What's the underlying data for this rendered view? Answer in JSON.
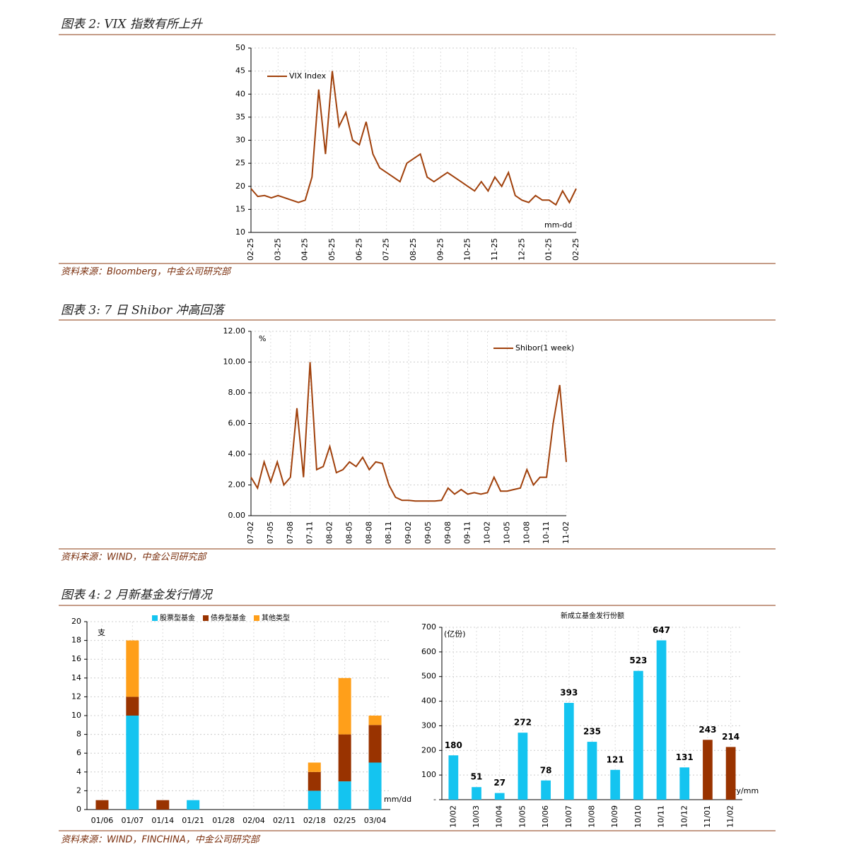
{
  "figure_titles": [
    "图表 2:  VIX 指数有所上升",
    "图表 3:  7 日 Shibor 冲高回落",
    "图表 4:  2 月新基金发行情况"
  ],
  "sources": [
    "资料来源：Bloomberg，中金公司研究部",
    "资料来源：WIND，中金公司研究部",
    "资料来源：WIND，FINCHINA，中金公司研究部"
  ],
  "chart_data": [
    {
      "type": "line",
      "annotations": [
        "mm-dd"
      ],
      "categories": [
        "02-25",
        null,
        null,
        null,
        "03-25",
        null,
        null,
        null,
        "04-25",
        null,
        null,
        null,
        "05-25",
        null,
        null,
        null,
        "06-25",
        null,
        null,
        null,
        "07-25",
        null,
        null,
        null,
        "08-25",
        null,
        null,
        null,
        "09-25",
        null,
        null,
        null,
        "10-25",
        null,
        null,
        null,
        "11-25",
        null,
        null,
        null,
        "12-25",
        null,
        null,
        null,
        "01-25",
        null,
        null,
        null,
        "02-25"
      ],
      "series": [
        {
          "name": "VIX Index",
          "color": "#a0400b",
          "values": [
            19.5,
            17.8,
            18,
            17.5,
            18,
            17.5,
            17,
            16.5,
            17,
            22,
            41,
            27,
            45,
            33,
            36,
            30,
            29,
            34,
            27,
            24,
            23,
            22,
            21,
            25,
            26,
            27,
            22,
            21,
            22,
            23,
            22,
            21,
            20,
            19,
            21,
            19,
            22,
            20,
            23,
            18,
            17,
            16.5,
            18,
            17,
            17,
            16,
            19,
            16.5,
            19.5
          ]
        }
      ],
      "ylim": [
        10,
        50
      ],
      "yticks": [
        10,
        15,
        20,
        25,
        30,
        35,
        40,
        45,
        50
      ],
      "grid": true
    },
    {
      "type": "line",
      "annotations": [
        "%"
      ],
      "categories": [
        "07-02",
        null,
        null,
        "07-05",
        null,
        null,
        "07-08",
        null,
        null,
        "07-11",
        null,
        null,
        "08-02",
        null,
        null,
        "08-05",
        null,
        null,
        "08-08",
        null,
        null,
        "08-11",
        null,
        null,
        "09-02",
        null,
        null,
        "09-05",
        null,
        null,
        "09-08",
        null,
        null,
        "09-11",
        null,
        null,
        "10-02",
        null,
        null,
        "10-05",
        null,
        null,
        "10-08",
        null,
        null,
        "10-11",
        null,
        null,
        "11-02"
      ],
      "series": [
        {
          "name": "Shibor(1 week)",
          "color": "#a0400b",
          "values": [
            2.5,
            1.8,
            3.5,
            2.2,
            3.5,
            2.0,
            2.5,
            7.0,
            2.5,
            10.0,
            3.0,
            3.2,
            4.5,
            2.8,
            3.0,
            3.5,
            3.2,
            3.8,
            3.0,
            3.5,
            3.4,
            2.0,
            1.2,
            1.0,
            1.0,
            0.95,
            0.95,
            0.95,
            0.95,
            1.0,
            1.8,
            1.4,
            1.7,
            1.4,
            1.5,
            1.4,
            1.5,
            2.5,
            1.6,
            1.6,
            1.7,
            1.8,
            3.0,
            2.0,
            2.5,
            2.5,
            6.0,
            8.5,
            3.5
          ]
        }
      ],
      "ylim": [
        0,
        12
      ],
      "yticks": [
        {
          "value": 0,
          "label": "0.00"
        },
        {
          "value": 2,
          "label": "2.00"
        },
        {
          "value": 4,
          "label": "4.00"
        },
        {
          "value": 6,
          "label": "6.00"
        },
        {
          "value": 8,
          "label": "8.00"
        },
        {
          "value": 10,
          "label": "10.00"
        },
        {
          "value": 12,
          "label": "12.00"
        }
      ],
      "grid": true
    },
    {
      "type": "bar",
      "stacked": true,
      "annotations": [
        "支",
        "mm/dd"
      ],
      "categories": [
        "01/06",
        "01/07",
        "01/14",
        "01/21",
        "01/28",
        "02/04",
        "02/11",
        "02/18",
        "02/25",
        "03/04"
      ],
      "series": [
        {
          "name": "股票型基金",
          "color": "#14c4f0",
          "values": [
            0,
            10,
            0,
            1,
            0,
            0,
            0,
            2,
            3,
            5
          ]
        },
        {
          "name": "债券型基金",
          "color": "#993300",
          "values": [
            1,
            2,
            1,
            0,
            0,
            0,
            0,
            2,
            5,
            4
          ]
        },
        {
          "name": "其他类型",
          "color": "#ff9f1a",
          "values": [
            0,
            6,
            0,
            0,
            0,
            0,
            0,
            1,
            6,
            1
          ]
        }
      ],
      "ylim": [
        0,
        20
      ],
      "yticks": [
        0,
        2,
        4,
        6,
        8,
        10,
        12,
        14,
        16,
        18,
        20
      ],
      "grid": true
    },
    {
      "type": "bar",
      "title": "新成立基金发行份额",
      "annotations": [
        "(亿份)",
        "yy/mm"
      ],
      "categories": [
        "10/02",
        "10/03",
        "10/04",
        "10/05",
        "10/06",
        "10/07",
        "10/08",
        "10/09",
        "10/10",
        "10/11",
        "10/12",
        "11/01",
        "11/02"
      ],
      "values": [
        180,
        51,
        27,
        272,
        78,
        393,
        235,
        121,
        523,
        647,
        131,
        243,
        214
      ],
      "colors": [
        "#14c4f0",
        "#14c4f0",
        "#14c4f0",
        "#14c4f0",
        "#14c4f0",
        "#14c4f0",
        "#14c4f0",
        "#14c4f0",
        "#14c4f0",
        "#14c4f0",
        "#14c4f0",
        "#993300",
        "#993300"
      ],
      "ylim": [
        0,
        700
      ],
      "yticks": [
        {
          "value": 0,
          "label": "-"
        },
        100,
        200,
        300,
        400,
        500,
        600,
        700
      ],
      "grid": true
    }
  ]
}
